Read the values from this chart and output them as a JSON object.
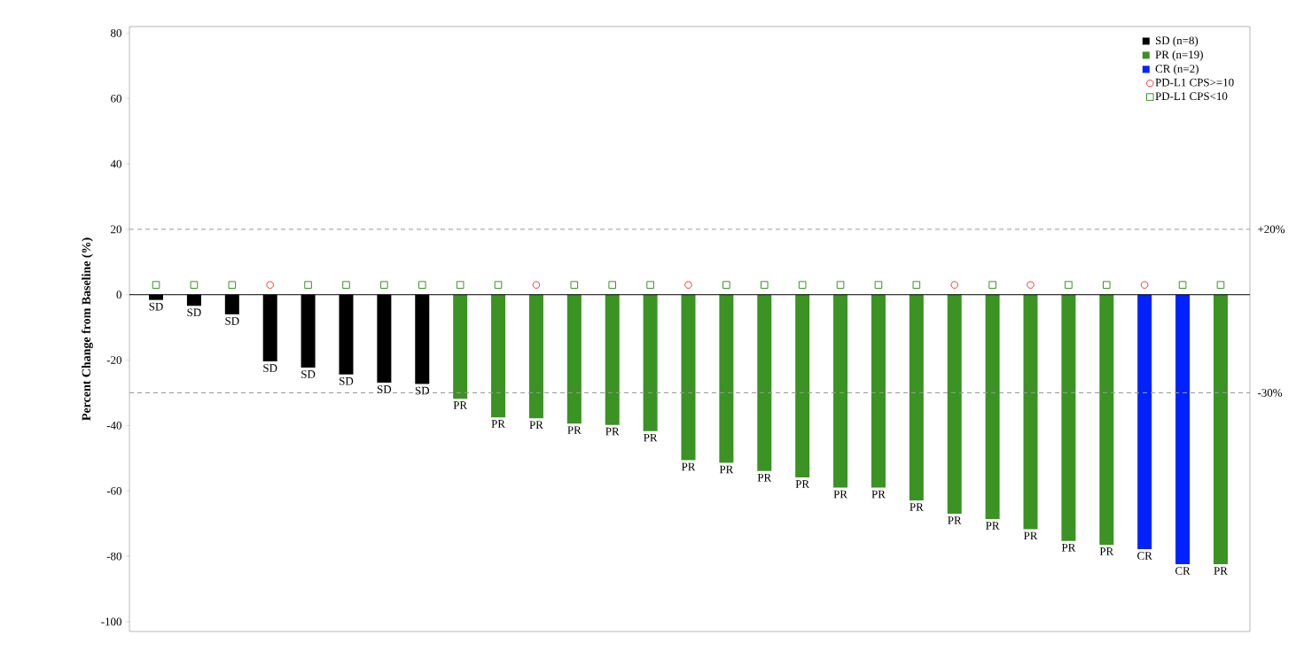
{
  "chart_data": {
    "type": "bar",
    "ylabel": "Percent Change from Baseline (%)",
    "categories": [
      null,
      null,
      null,
      null,
      null,
      null,
      null,
      null,
      null,
      null,
      null,
      null,
      null,
      null,
      null,
      null,
      null,
      null,
      null,
      null,
      null,
      null,
      null,
      null,
      null,
      null,
      null,
      null,
      null
    ],
    "ylim": [
      -103,
      82
    ],
    "yticks": [
      -100,
      -80,
      -60,
      -40,
      -20,
      0,
      20,
      40,
      60,
      80
    ],
    "legend": "top right",
    "ref_lines": [
      {
        "axis": "y",
        "value": 20,
        "label": "+20%",
        "color": "#999999",
        "line_style": "dashed"
      },
      {
        "axis": "y",
        "value": -30,
        "label": "-30%",
        "color": "#999999",
        "line_style": "dashed"
      }
    ],
    "series": [
      {
        "name": "SD (n=8)",
        "color": "#000000",
        "values": [
          -1.6,
          -3.4,
          -6,
          -20.4,
          -22.3,
          -24.4,
          -26.9,
          -27.3,
          null,
          null,
          null,
          null,
          null,
          null,
          null,
          null,
          null,
          null,
          null,
          null,
          null,
          null,
          null,
          null,
          null,
          null,
          null,
          null,
          null
        ],
        "value_labels": [
          "SD",
          "SD",
          "SD",
          "SD",
          "SD",
          "SD",
          "SD",
          "SD",
          null,
          null,
          null,
          null,
          null,
          null,
          null,
          null,
          null,
          null,
          null,
          null,
          null,
          null,
          null,
          null,
          null,
          null,
          null,
          null,
          null
        ]
      },
      {
        "name": "PR (n=19)",
        "color": "#3a9323",
        "values": [
          null,
          null,
          null,
          null,
          null,
          null,
          null,
          null,
          -31.8,
          -37.5,
          -37.8,
          -39.4,
          -39.8,
          -41.7,
          -50.6,
          -51.4,
          -53.9,
          -55.9,
          -59,
          -59,
          -62.9,
          -67,
          -68.6,
          -71.7,
          -75.3,
          -76.5,
          null,
          null,
          -82.4
        ],
        "value_labels": [
          null,
          null,
          null,
          null,
          null,
          null,
          null,
          null,
          "PR",
          "PR",
          "PR",
          "PR",
          "PR",
          "PR",
          "PR",
          "PR",
          "PR",
          "PR",
          "PR",
          "PR",
          "PR",
          "PR",
          "PR",
          "PR",
          "PR",
          "PR",
          null,
          null,
          "PR"
        ]
      },
      {
        "name": "CR (n=2)",
        "color": "#0022ff",
        "values": [
          null,
          null,
          null,
          null,
          null,
          null,
          null,
          null,
          null,
          null,
          null,
          null,
          null,
          null,
          null,
          null,
          null,
          null,
          null,
          null,
          null,
          null,
          null,
          null,
          null,
          null,
          -77.8,
          -82.4,
          null
        ],
        "value_labels": [
          null,
          null,
          null,
          null,
          null,
          null,
          null,
          null,
          null,
          null,
          null,
          null,
          null,
          null,
          null,
          null,
          null,
          null,
          null,
          null,
          null,
          null,
          null,
          null,
          null,
          null,
          "CR",
          "CR",
          null
        ]
      },
      {
        "name": "PD-L1 CPS>=10",
        "type": "scatter",
        "marker": "circle",
        "color": "#ff3333",
        "values": [
          null,
          null,
          null,
          3,
          null,
          null,
          null,
          null,
          null,
          null,
          3,
          null,
          null,
          null,
          3,
          null,
          null,
          null,
          null,
          null,
          null,
          3,
          null,
          3,
          null,
          null,
          3,
          null,
          null
        ]
      },
      {
        "name": "PD-L1 CPS<10",
        "type": "scatter",
        "marker": "square",
        "color": "#3a9323",
        "values": [
          3,
          3,
          3,
          null,
          3,
          3,
          3,
          3,
          3,
          3,
          null,
          3,
          3,
          3,
          null,
          3,
          3,
          3,
          3,
          3,
          3,
          null,
          3,
          null,
          3,
          3,
          null,
          3,
          3
        ]
      }
    ]
  }
}
